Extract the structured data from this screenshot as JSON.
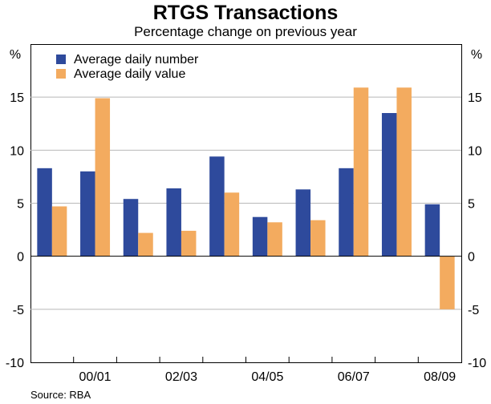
{
  "chart_data": {
    "type": "bar",
    "title": "RTGS Transactions",
    "subtitle": "Percentage change on previous year",
    "unit_label_left": "%",
    "unit_label_right": "%",
    "source": "Source: RBA",
    "ylim": [
      -10,
      20
    ],
    "yticks": [
      -10,
      -5,
      0,
      5,
      10,
      15
    ],
    "categories": [
      "99/00",
      "00/01",
      "01/02",
      "02/03",
      "03/04",
      "04/05",
      "05/06",
      "06/07",
      "07/08",
      "08/09"
    ],
    "category_labels": [
      "",
      "00/01",
      "",
      "02/03",
      "",
      "04/05",
      "",
      "06/07",
      "",
      "08/09"
    ],
    "series": [
      {
        "name": "Average daily number",
        "color": "#2e4a9c",
        "values": [
          8.3,
          8.0,
          5.4,
          6.4,
          9.4,
          3.7,
          6.3,
          8.3,
          13.5,
          4.9
        ]
      },
      {
        "name": "Average daily value",
        "color": "#f3ab5f",
        "values": [
          4.7,
          14.9,
          2.2,
          2.4,
          6.0,
          3.2,
          3.4,
          15.9,
          15.9,
          -5.0
        ]
      }
    ]
  }
}
